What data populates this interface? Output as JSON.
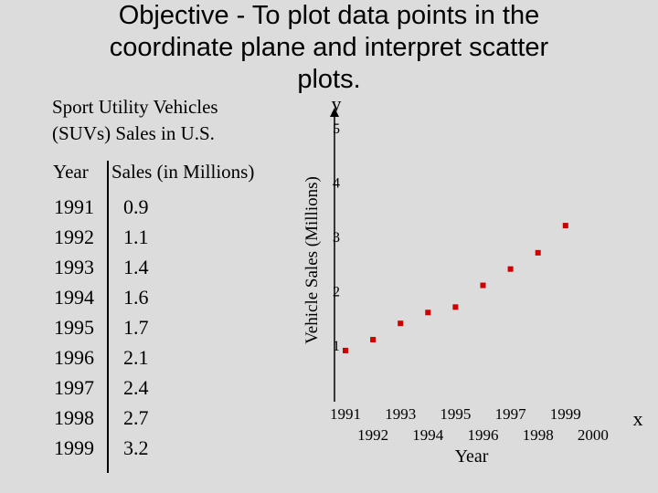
{
  "objective_lines": [
    "Objective - To plot data points in the",
    "coordinate plane and interpret scatter",
    "plots."
  ],
  "table_title_lines": [
    "Sport Utility Vehicles",
    "(SUVs) Sales in U.S."
  ],
  "table": {
    "headers": [
      "Year",
      "Sales (in Millions)"
    ],
    "rows": [
      [
        "1991",
        "0.9"
      ],
      [
        "1992",
        "1.1"
      ],
      [
        "1993",
        "1.4"
      ],
      [
        "1994",
        "1.6"
      ],
      [
        "1995",
        "1.7"
      ],
      [
        "1996",
        "2.1"
      ],
      [
        "1997",
        "2.4"
      ],
      [
        "1998",
        "2.7"
      ],
      [
        "1999",
        "3.2"
      ]
    ]
  },
  "chart_data": {
    "type": "scatter",
    "xlabel": "Year",
    "ylabel": "Vehicle Sales (Millions)",
    "x_axis_letter": "x",
    "y_axis_letter": "y",
    "xlim": [
      1991,
      2000
    ],
    "ylim": [
      0.9,
      5
    ],
    "xticks": [
      "1991",
      "1992",
      "1993",
      "1994",
      "1995",
      "1996",
      "1997",
      "1998",
      "1999",
      "2000"
    ],
    "yticks": [
      "1",
      "2",
      "3",
      "4",
      "5"
    ],
    "x": [
      1991,
      1992,
      1993,
      1994,
      1995,
      1996,
      1997,
      1998,
      1999
    ],
    "y": [
      0.9,
      1.1,
      1.4,
      1.6,
      1.7,
      2.1,
      2.4,
      2.7,
      3.2
    ],
    "point_color": "#cc0000"
  }
}
